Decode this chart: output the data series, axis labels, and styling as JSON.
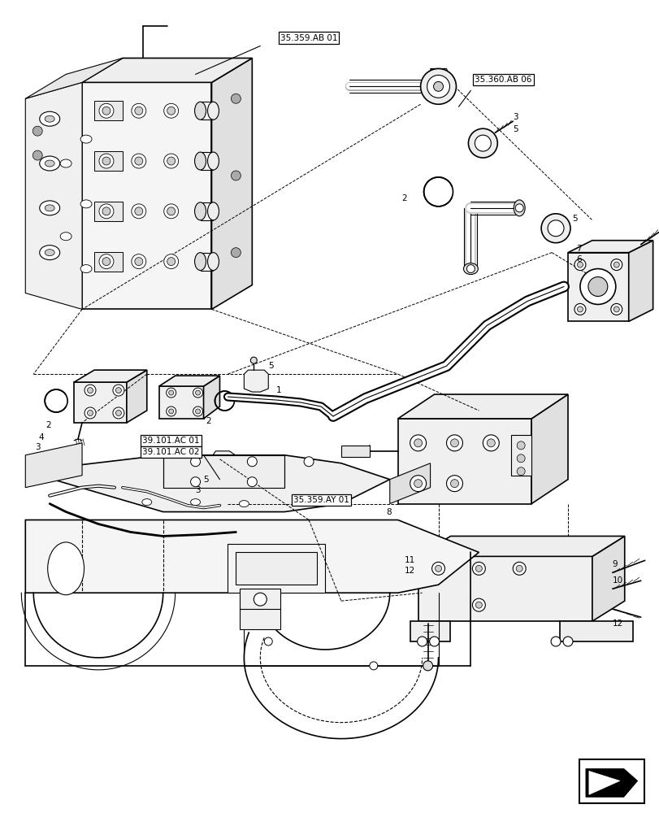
{
  "bg_color": "#ffffff",
  "line_color": "#000000",
  "fig_width": 8.12,
  "fig_height": 10.0,
  "dpi": 100,
  "labels": {
    "ref_35359AB01": "35.359.AB 01",
    "ref_35360AB06": "35.360.AB 06",
    "ref_35359AY01": "35.359.AY 01",
    "ref_39101AC01": "39.101.AC 01",
    "ref_39101AC02": "39.101.AC 02"
  }
}
